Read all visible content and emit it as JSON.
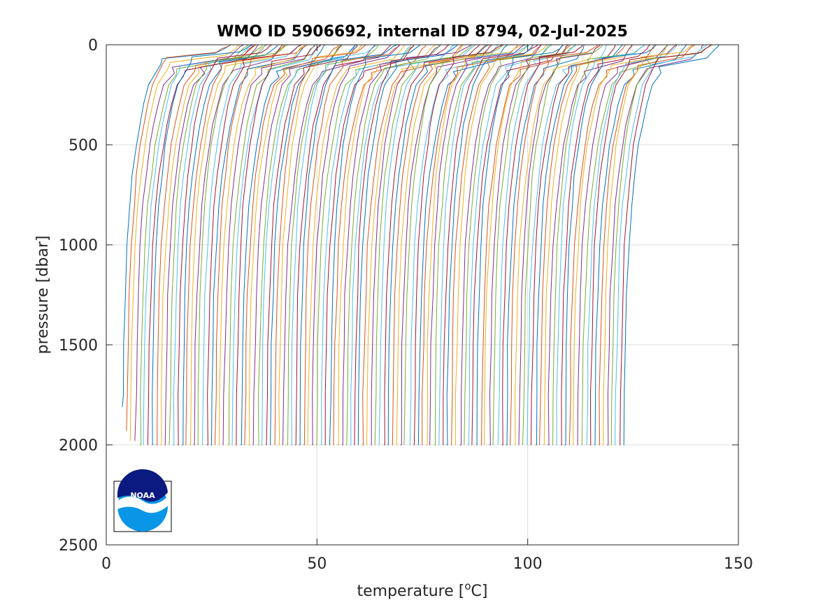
{
  "chart_data": {
    "type": "line",
    "title": "WMO ID 5906692, internal ID 8794, 02-Jul-2025",
    "xlabel": "temperature [",
    "xlabel_sup": "o",
    "xlabel_end": "C]",
    "ylabel": "pressure [dbar]",
    "xlim": [
      0,
      150
    ],
    "ylim": [
      0,
      2500
    ],
    "y_reversed": true,
    "grid": true,
    "x_ticks": [
      0,
      50,
      100,
      150
    ],
    "y_ticks": [
      0,
      500,
      1000,
      1500,
      2000,
      2500
    ],
    "profiles": {
      "count": 120,
      "offset_step": 1,
      "first_deep_temperature": 3.8,
      "first_surface_temperature": 28,
      "colors": [
        "#0072BD",
        "#D95319",
        "#EDB120",
        "#7E2F8E",
        "#77AC30",
        "#4DBEEE",
        "#A2142F"
      ]
    },
    "logo": {
      "text": "NOAA",
      "position": "bottom-left"
    }
  }
}
